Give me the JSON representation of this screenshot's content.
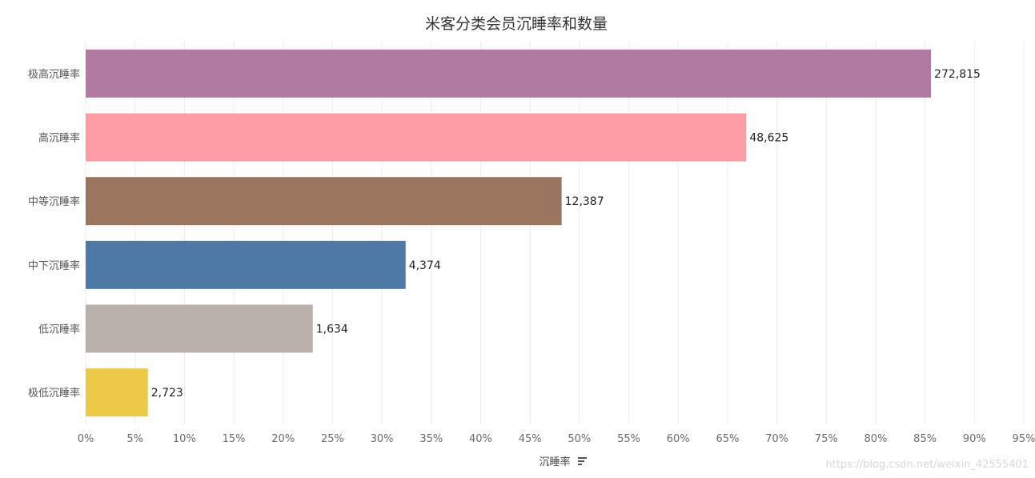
{
  "chart_data": {
    "type": "bar",
    "orientation": "horizontal",
    "title": "米客分类会员沉睡率和数量",
    "xlabel": "沉睡率",
    "ylabel": "",
    "xlim": [
      0,
      95
    ],
    "x_ticks": [
      "0%",
      "5%",
      "10%",
      "15%",
      "20%",
      "25%",
      "30%",
      "35%",
      "40%",
      "45%",
      "50%",
      "55%",
      "60%",
      "65%",
      "70%",
      "75%",
      "80%",
      "85%",
      "90%",
      "95%"
    ],
    "x_tick_values": [
      0,
      5,
      10,
      15,
      20,
      25,
      30,
      35,
      40,
      45,
      50,
      55,
      60,
      65,
      70,
      75,
      80,
      85,
      90,
      95
    ],
    "grid": true,
    "categories": [
      "极高沉睡率",
      "高沉睡率",
      "中等沉睡率",
      "中下沉睡率",
      "低沉睡率",
      "极低沉睡率"
    ],
    "values": [
      85.6,
      66.9,
      48.2,
      32.4,
      23.0,
      6.3
    ],
    "value_labels": [
      "272,815",
      "48,625",
      "12,387",
      "4,374",
      "1,634",
      "2,723"
    ],
    "colors": [
      "#b07aa1",
      "#ff9da7",
      "#9c755f",
      "#4e79a7",
      "#bab0ac",
      "#edc948"
    ]
  },
  "sort_icon": "sort-descending-icon",
  "watermark": "https://blog.csdn.net/weixin_42555401"
}
